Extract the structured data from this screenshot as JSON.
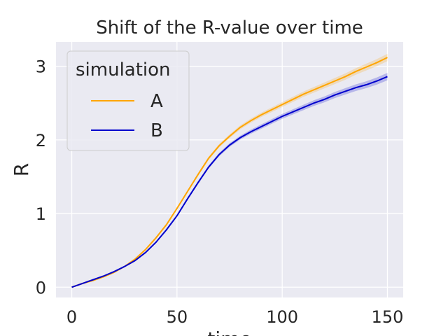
{
  "chart_data": {
    "type": "line",
    "title": "Shift of the R-value over time",
    "xlabel": "time",
    "ylabel": "R",
    "xlim": [
      -7.5,
      157.5
    ],
    "ylim": [
      -0.14,
      3.33
    ],
    "xticks": [
      0,
      50,
      100,
      150
    ],
    "yticks": [
      0,
      1,
      2,
      3
    ],
    "grid": true,
    "legend": {
      "title": "simulation",
      "placement": "top-left"
    },
    "background": "#eaeaf2",
    "x": [
      0,
      5,
      10,
      15,
      20,
      25,
      30,
      35,
      40,
      45,
      50,
      55,
      60,
      65,
      70,
      75,
      80,
      85,
      90,
      95,
      100,
      105,
      110,
      115,
      120,
      125,
      130,
      135,
      140,
      145,
      150
    ],
    "series": [
      {
        "name": "A",
        "color": "#ffa500",
        "values": [
          0.0,
          0.05,
          0.09,
          0.14,
          0.2,
          0.28,
          0.38,
          0.51,
          0.67,
          0.85,
          1.07,
          1.3,
          1.53,
          1.75,
          1.92,
          2.05,
          2.17,
          2.26,
          2.34,
          2.41,
          2.48,
          2.55,
          2.62,
          2.68,
          2.74,
          2.8,
          2.86,
          2.93,
          2.99,
          3.05,
          3.12
        ],
        "ci": 0.05
      },
      {
        "name": "B",
        "color": "#0000cd",
        "values": [
          0.0,
          0.05,
          0.1,
          0.15,
          0.21,
          0.28,
          0.36,
          0.47,
          0.61,
          0.78,
          0.97,
          1.2,
          1.42,
          1.63,
          1.8,
          1.93,
          2.03,
          2.11,
          2.18,
          2.25,
          2.32,
          2.38,
          2.44,
          2.5,
          2.55,
          2.61,
          2.66,
          2.71,
          2.75,
          2.8,
          2.86
        ],
        "ci": 0.05
      }
    ]
  }
}
